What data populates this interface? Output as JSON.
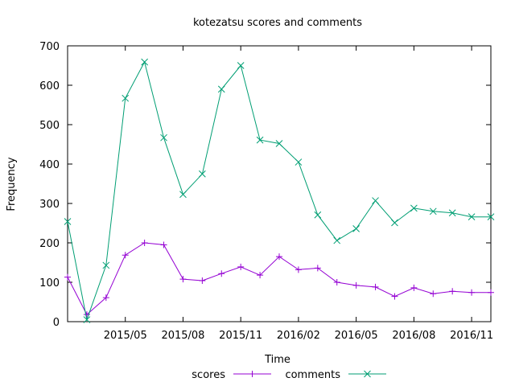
{
  "chart_data": {
    "type": "line",
    "title": "kotezatsu scores and comments",
    "xlabel": "Time",
    "ylabel": "Frequency",
    "ylim": [
      0,
      700
    ],
    "yticks": [
      0,
      100,
      200,
      300,
      400,
      500,
      600,
      700
    ],
    "xlim": [
      "2015-02",
      "2016-12"
    ],
    "xticks": [
      "2015/05",
      "2015/08",
      "2015/11",
      "2016/02",
      "2016/05",
      "2016/08",
      "2016/11"
    ],
    "grid": false,
    "legend_position": "bottom",
    "x": [
      "2015-02",
      "2015-03",
      "2015-04",
      "2015-05",
      "2015-06",
      "2015-07",
      "2015-08",
      "2015-09",
      "2015-10",
      "2015-11",
      "2015-12",
      "2016-01",
      "2016-02",
      "2016-03",
      "2016-04",
      "2016-05",
      "2016-06",
      "2016-07",
      "2016-08",
      "2016-09",
      "2016-10",
      "2016-11",
      "2016-12"
    ],
    "series": [
      {
        "name": "scores",
        "color": "#9400d3",
        "marker": "plus",
        "values": [
          113,
          18,
          61,
          169,
          200,
          195,
          108,
          104,
          122,
          139,
          118,
          165,
          132,
          136,
          100,
          92,
          88,
          64,
          86,
          71,
          77,
          74,
          74
        ]
      },
      {
        "name": "comments",
        "color": "#009e73",
        "marker": "cross",
        "values": [
          254,
          5,
          143,
          567,
          659,
          467,
          323,
          375,
          590,
          650,
          461,
          452,
          405,
          271,
          206,
          236,
          307,
          251,
          288,
          280,
          276,
          266,
          266
        ]
      }
    ]
  }
}
